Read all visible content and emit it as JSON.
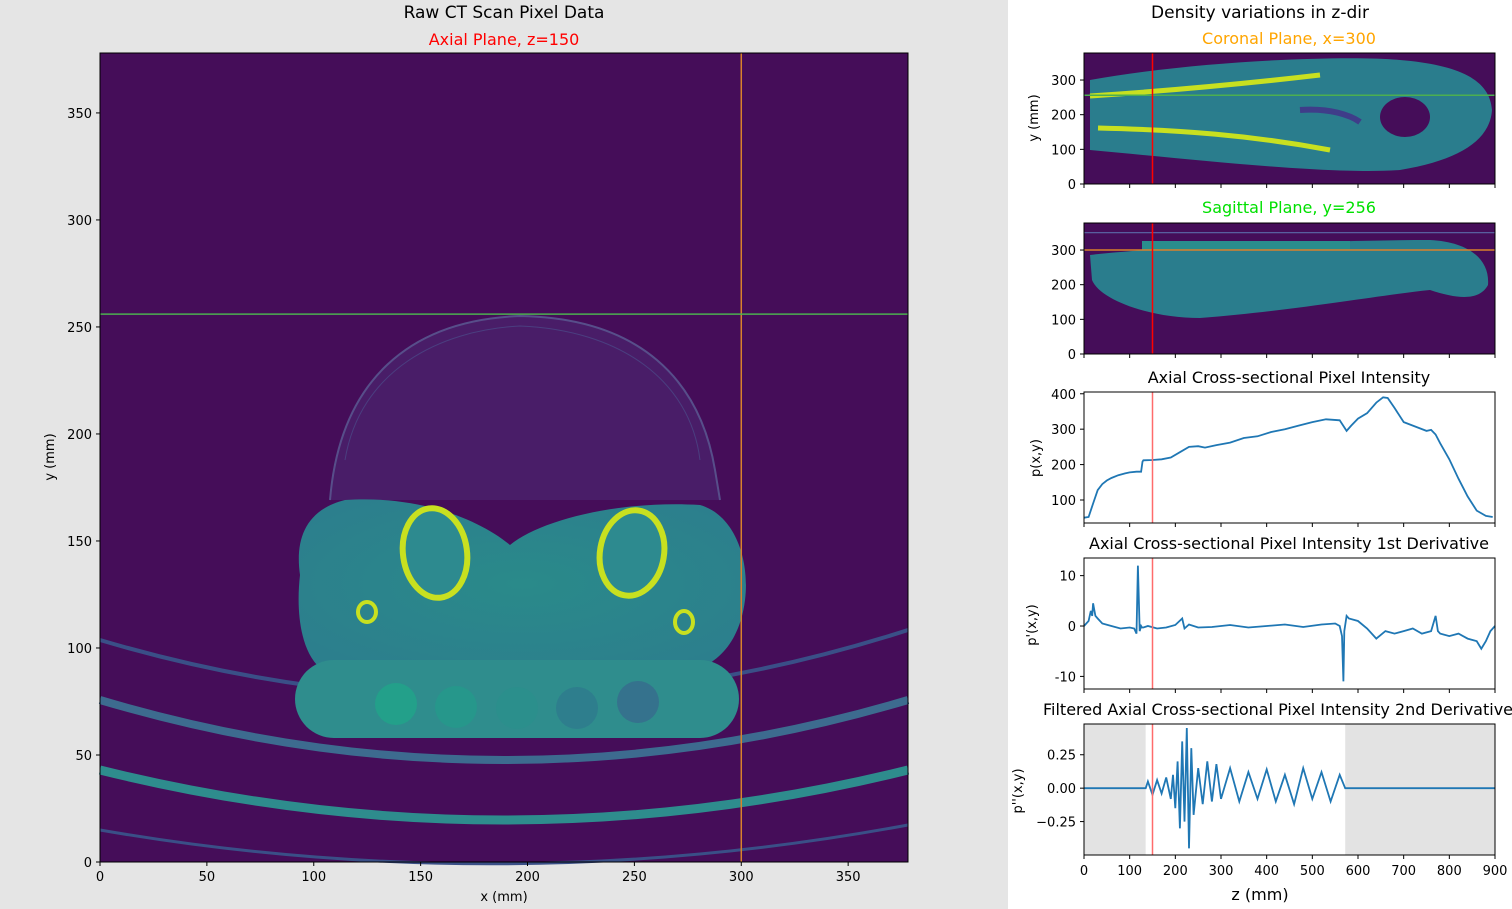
{
  "left": {
    "suptitle": "Raw CT Scan Pixel Data",
    "axial": {
      "title": "Axial Plane, z=150",
      "title_color": "#ff0000",
      "xlabel": "x (mm)",
      "ylabel": "y (mm)",
      "xlim": [
        0,
        378
      ],
      "ylim": [
        0,
        378
      ],
      "xticks": [
        0,
        50,
        100,
        150,
        200,
        250,
        300,
        350
      ],
      "yticks": [
        0,
        50,
        100,
        150,
        200,
        250,
        300,
        350
      ],
      "crosshair": {
        "x": 300,
        "y": 256,
        "x_color": "#d9822b",
        "y_color": "#4caf50"
      }
    }
  },
  "right": {
    "suptitle": "Density variations in z-dir",
    "coronal": {
      "title": "Coronal Plane, x=300",
      "title_color": "#ffa500",
      "ylabel": "y (mm)",
      "yticks": [
        0,
        100,
        200,
        300
      ],
      "ylim": [
        0,
        378
      ],
      "xlim": [
        0,
        900
      ],
      "hline": 256,
      "hline_color": "#4caf50",
      "vline": 150,
      "vline_color": "#ff0000"
    },
    "sagittal": {
      "title": "Sagittal Plane, y=256",
      "title_color": "#00ff00",
      "yticks": [
        0,
        100,
        200,
        300
      ],
      "ylim": [
        0,
        378
      ],
      "xlim": [
        0,
        900
      ],
      "hline": 300,
      "hline_color": "#d9822b",
      "vline": 150,
      "vline_color": "#ff0000"
    },
    "intensity": {
      "title": "Axial Cross-sectional Pixel Intensity",
      "ylabel": "p(x,y)",
      "yticks": [
        100,
        200,
        300,
        400
      ],
      "ylim": [
        35,
        405
      ],
      "xlim": [
        0,
        900
      ],
      "vline": 150
    },
    "deriv1": {
      "title": "Axial Cross-sectional Pixel Intensity 1st Derivative",
      "ylabel": "p'(x,y)",
      "yticks": [
        -10,
        0,
        10
      ],
      "ylim": [
        -12.5,
        13.5
      ],
      "xlim": [
        0,
        900
      ],
      "vline": 150
    },
    "deriv2": {
      "title": "Filtered Axial Cross-sectional Pixel Intensity 2nd Derivative",
      "ylabel": "p''(x,y)",
      "yticks": [
        "0.25",
        "0.00",
        "−0.25"
      ],
      "ylim": [
        -0.5,
        0.48
      ],
      "xlim": [
        0,
        900
      ],
      "vline": 150,
      "xticks": [
        0,
        100,
        200,
        300,
        400,
        500,
        600,
        700,
        800,
        900
      ],
      "xlabel": "z (mm)",
      "shade": [
        [
          0,
          135
        ],
        [
          572,
          900
        ]
      ]
    }
  },
  "chart_data": [
    {
      "type": "heatmap",
      "title": "Axial Plane, z=150",
      "xlabel": "x (mm)",
      "ylabel": "y (mm)",
      "xlim": [
        0,
        378
      ],
      "ylim": [
        0,
        378
      ],
      "annotations": [
        "vertical line x=300",
        "horizontal line y=256"
      ]
    },
    {
      "type": "heatmap",
      "title": "Coronal Plane, x=300",
      "ylabel": "y (mm)",
      "ylim": [
        0,
        378
      ],
      "xlim": [
        0,
        900
      ]
    },
    {
      "type": "heatmap",
      "title": "Sagittal Plane, y=256",
      "ylim": [
        0,
        378
      ],
      "xlim": [
        0,
        900
      ]
    },
    {
      "type": "line",
      "title": "Axial Cross-sectional Pixel Intensity",
      "ylabel": "p(x,y)",
      "ylim": [
        35,
        405
      ],
      "x": [
        0,
        10,
        20,
        30,
        40,
        50,
        60,
        75,
        90,
        100,
        115,
        125,
        128,
        130,
        150,
        170,
        190,
        210,
        230,
        250,
        265,
        290,
        320,
        350,
        380,
        410,
        440,
        470,
        500,
        530,
        560,
        575,
        585,
        600,
        620,
        640,
        655,
        665,
        680,
        700,
        730,
        750,
        760,
        770,
        780,
        800,
        820,
        840,
        860,
        880,
        895
      ],
      "y": [
        50,
        52,
        90,
        128,
        145,
        155,
        162,
        170,
        175,
        178,
        180,
        180,
        208,
        212,
        213,
        215,
        220,
        235,
        250,
        252,
        248,
        255,
        262,
        275,
        280,
        292,
        300,
        310,
        320,
        328,
        325,
        295,
        310,
        330,
        345,
        375,
        390,
        388,
        360,
        320,
        305,
        295,
        298,
        285,
        260,
        215,
        160,
        110,
        70,
        55,
        52
      ]
    },
    {
      "type": "line",
      "title": "Axial Cross-sectional Pixel Intensity 1st Derivative",
      "ylabel": "p'(x,y)",
      "ylim": [
        -12.5,
        13.5
      ],
      "x": [
        0,
        10,
        15,
        18,
        20,
        22,
        25,
        30,
        40,
        60,
        80,
        100,
        110,
        115,
        118,
        122,
        125,
        127,
        130,
        140,
        160,
        180,
        200,
        215,
        220,
        230,
        250,
        280,
        320,
        360,
        400,
        440,
        480,
        520,
        550,
        560,
        565,
        568,
        570,
        575,
        580,
        600,
        620,
        640,
        660,
        680,
        700,
        720,
        740,
        760,
        770,
        775,
        780,
        800,
        820,
        840,
        860,
        870,
        880,
        890,
        900
      ],
      "y": [
        0,
        1,
        3,
        2,
        4.5,
        3.5,
        2,
        1.5,
        0.5,
        0,
        -0.5,
        -0.3,
        -0.5,
        -1.5,
        12,
        -1,
        0,
        -0.3,
        -0.3,
        0,
        -0.5,
        -0.3,
        0.2,
        1.5,
        -0.5,
        0.3,
        -0.3,
        -0.2,
        0.2,
        -0.3,
        0,
        0.3,
        -0.2,
        0.3,
        0.5,
        0,
        -2,
        -11,
        -1,
        2,
        1.5,
        1,
        -0.5,
        -2.5,
        -1,
        -1.5,
        -1,
        -0.5,
        -1.5,
        -1,
        2,
        -1,
        -1.5,
        -2,
        -1.5,
        -2.5,
        -3,
        -4.5,
        -3,
        -1,
        0
      ]
    },
    {
      "type": "line",
      "title": "Filtered Axial Cross-sectional Pixel Intensity 2nd Derivative",
      "xlabel": "z (mm)",
      "ylabel": "p''(x,y)",
      "ylim": [
        -0.5,
        0.48
      ],
      "x": [
        0,
        135,
        140,
        150,
        160,
        170,
        180,
        190,
        195,
        200,
        205,
        210,
        215,
        220,
        225,
        230,
        235,
        240,
        250,
        260,
        270,
        280,
        290,
        300,
        320,
        340,
        360,
        380,
        400,
        420,
        440,
        460,
        480,
        500,
        520,
        540,
        560,
        572,
        900
      ],
      "y": [
        0,
        0,
        0.05,
        -0.05,
        0.06,
        -0.04,
        0.08,
        -0.08,
        0.1,
        -0.15,
        0.2,
        -0.3,
        0.35,
        -0.25,
        0.45,
        -0.45,
        0.3,
        -0.2,
        0.15,
        -0.12,
        0.2,
        -0.1,
        0.18,
        -0.08,
        0.15,
        -0.1,
        0.12,
        -0.08,
        0.14,
        -0.1,
        0.1,
        -0.12,
        0.15,
        -0.08,
        0.12,
        -0.1,
        0.1,
        0,
        0
      ],
      "shaded_regions": [
        [
          0,
          135
        ],
        [
          572,
          900
        ]
      ]
    }
  ]
}
